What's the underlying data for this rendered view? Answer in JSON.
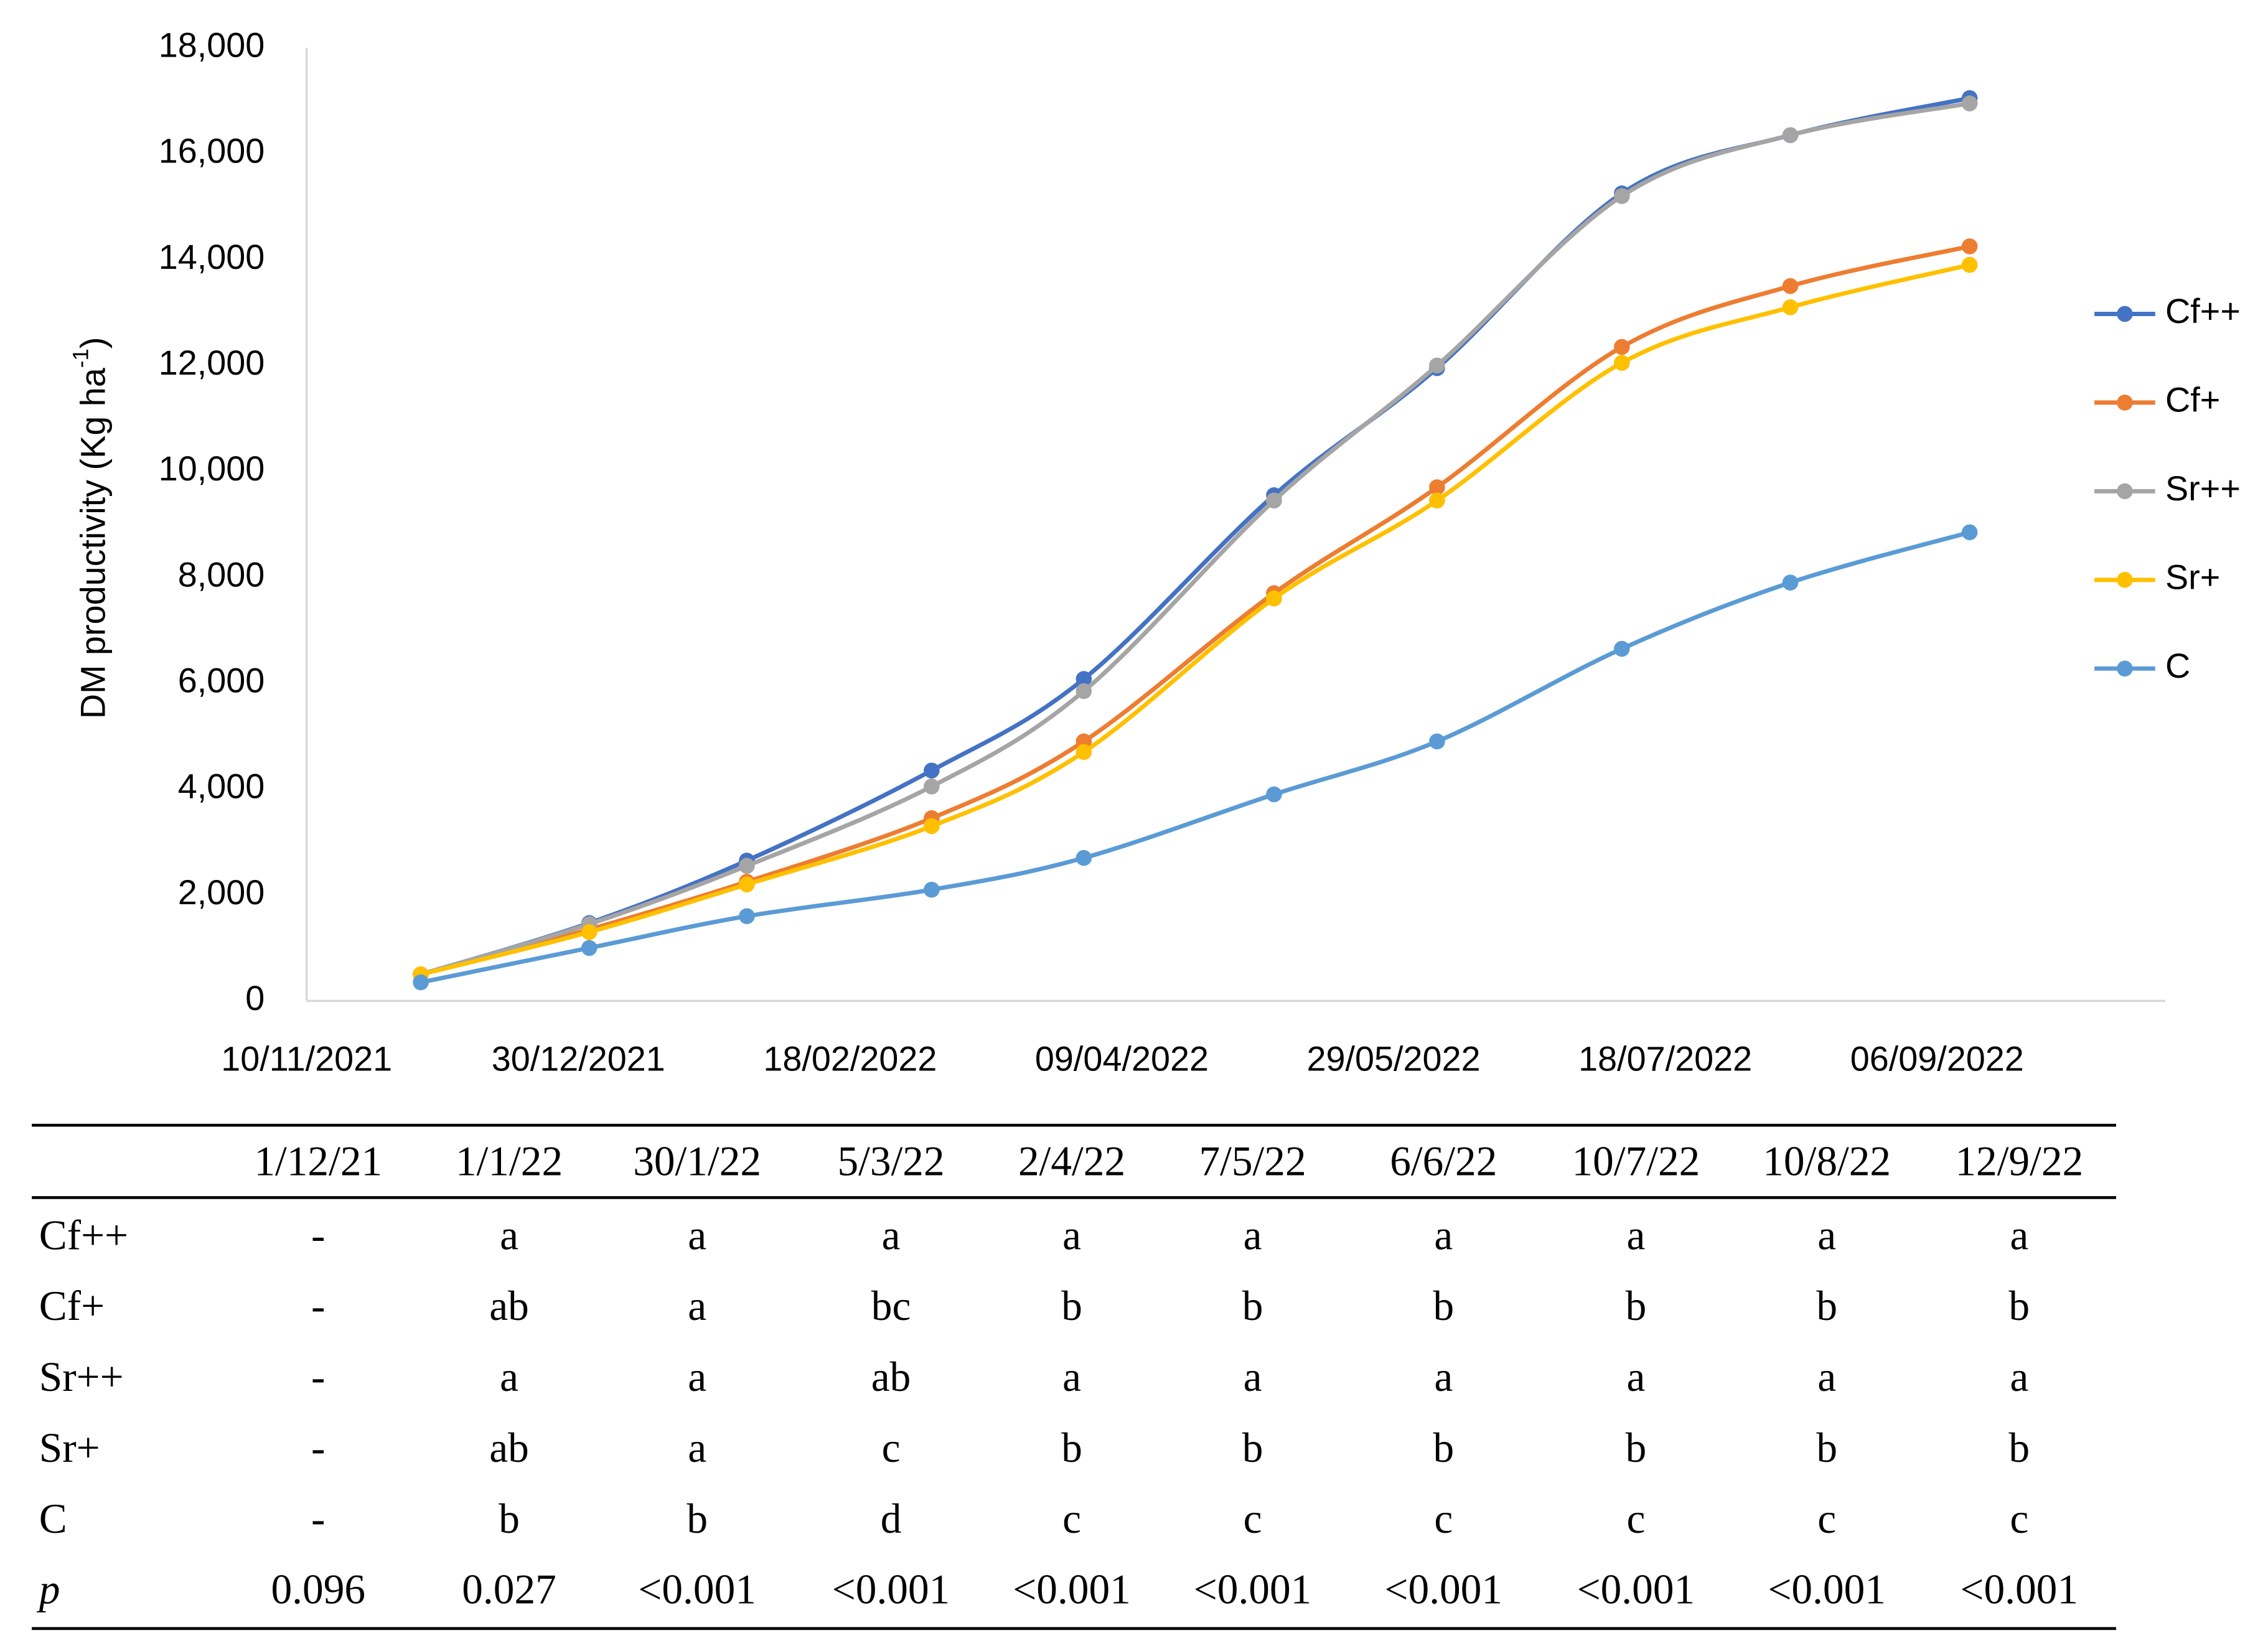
{
  "chart_data": {
    "type": "line",
    "y_label": [
      "DM productivity (Kg ha",
      "-1",
      ")"
    ],
    "x": [
      "2021-12-01",
      "2022-01-01",
      "2022-01-30",
      "2022-03-05",
      "2022-04-02",
      "2022-05-07",
      "2022-06-06",
      "2022-07-10",
      "2022-08-10",
      "2022-09-12"
    ],
    "xlim": [
      "2021-11-10",
      "2022-10-18"
    ],
    "xticks": [
      {
        "value": "2021-11-10",
        "label": "10/11/2021"
      },
      {
        "value": "2021-12-30",
        "label": "30/12/2021"
      },
      {
        "value": "2022-02-18",
        "label": "18/02/2022"
      },
      {
        "value": "2022-04-09",
        "label": "09/04/2022"
      },
      {
        "value": "2022-05-29",
        "label": "29/05/2022"
      },
      {
        "value": "2022-07-18",
        "label": "18/07/2022"
      },
      {
        "value": "2022-09-06",
        "label": "06/09/2022"
      }
    ],
    "ylim": [
      0,
      18000
    ],
    "yticks": [
      0,
      {
        "value": 2000,
        "label": "2,000"
      },
      {
        "value": 4000,
        "label": "4,000"
      },
      {
        "value": 6000,
        "label": "6,000"
      },
      {
        "value": 8000,
        "label": "8,000"
      },
      {
        "value": 10000,
        "label": "10,000"
      },
      {
        "value": 12000,
        "label": "12,000"
      },
      {
        "value": 14000,
        "label": "14,000"
      },
      {
        "value": 16000,
        "label": "16,000"
      },
      {
        "value": 18000,
        "label": "18,000"
      }
    ],
    "grid": false,
    "legend": "right",
    "series": [
      {
        "name": "Cf++",
        "color": "#4472c4",
        "values": [
          500,
          1470,
          2650,
          4350,
          6080,
          9550,
          11950,
          15250,
          16350,
          17050
        ]
      },
      {
        "name": "Cf+",
        "color": "#ed7d31",
        "values": [
          500,
          1350,
          2250,
          3450,
          4900,
          7700,
          9700,
          12350,
          13500,
          14250
        ]
      },
      {
        "name": "Sr++",
        "color": "#a5a5a5",
        "values": [
          500,
          1450,
          2550,
          4050,
          5850,
          9450,
          12000,
          15200,
          16350,
          16950
        ]
      },
      {
        "name": "Sr+",
        "color": "#ffc000",
        "values": [
          500,
          1300,
          2200,
          3300,
          4700,
          7600,
          9450,
          12050,
          13100,
          13900
        ]
      },
      {
        "name": "C",
        "color": "#5b9bd5",
        "values": [
          350,
          1000,
          1600,
          2100,
          2700,
          3900,
          4900,
          6650,
          7900,
          8850
        ]
      }
    ]
  },
  "table": {
    "columns": [
      "1/12/21",
      "1/1/22",
      "30/1/22",
      "5/3/22",
      "2/4/22",
      "7/5/22",
      "6/6/22",
      "10/7/22",
      "10/8/22",
      "12/9/22"
    ],
    "rows": [
      {
        "label": "Cf++",
        "cells": [
          "-",
          "a",
          "a",
          "a",
          "a",
          "a",
          "a",
          "a",
          "a",
          "a"
        ]
      },
      {
        "label": "Cf+",
        "cells": [
          "-",
          "ab",
          "a",
          "bc",
          "b",
          "b",
          "b",
          "b",
          "b",
          "b"
        ]
      },
      {
        "label": "Sr++",
        "cells": [
          "-",
          "a",
          "a",
          "ab",
          "a",
          "a",
          "a",
          "a",
          "a",
          "a"
        ]
      },
      {
        "label": "Sr+",
        "cells": [
          "-",
          "ab",
          "a",
          "c",
          "b",
          "b",
          "b",
          "b",
          "b",
          "b"
        ]
      },
      {
        "label": "C",
        "cells": [
          "-",
          "b",
          "b",
          "d",
          "c",
          "c",
          "c",
          "c",
          "c",
          "c"
        ]
      },
      {
        "label": "p",
        "cells": [
          "0.096",
          "0.027",
          "<0.001",
          "<0.001",
          "<0.001",
          "<0.001",
          "<0.001",
          "<0.001",
          "<0.001",
          "<0.001"
        ]
      }
    ]
  }
}
